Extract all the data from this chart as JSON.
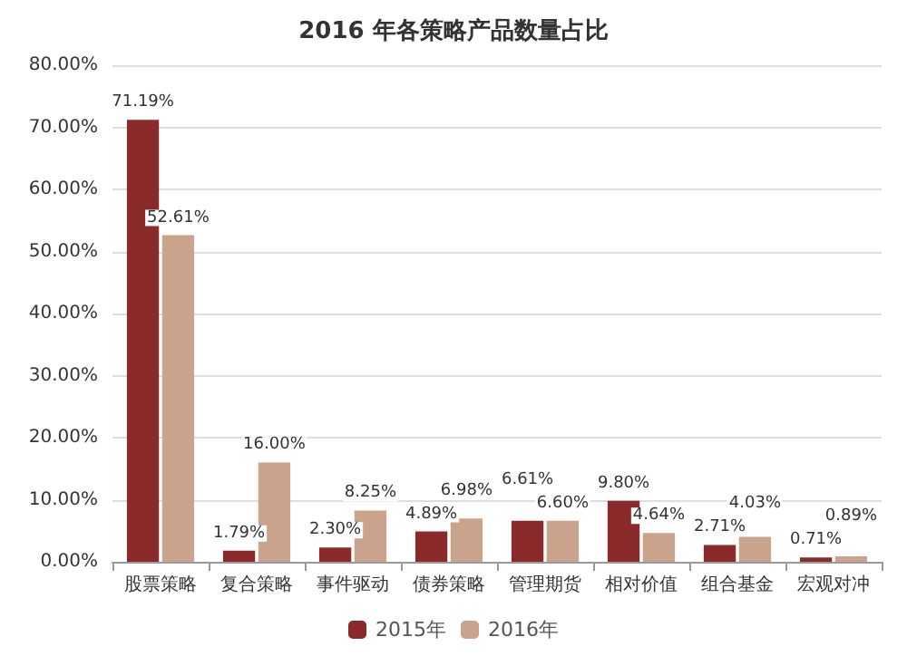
{
  "chart_data": {
    "type": "bar",
    "title": "2016 年各策略产品数量占比",
    "categories": [
      "股票策略",
      "复合策略",
      "事件驱动",
      "债券策略",
      "管理期货",
      "相对价值",
      "组合基金",
      "宏观对冲"
    ],
    "series": [
      {
        "name": "2015年",
        "color": "#8b2a2a",
        "values": [
          71.19,
          1.79,
          2.3,
          4.89,
          6.61,
          9.8,
          2.71,
          0.71
        ],
        "value_labels": [
          "71.19%",
          "1.79%",
          "2.30%",
          "4.89%",
          "6.61%",
          "9.80%",
          "2.71%",
          "0.71%"
        ]
      },
      {
        "name": "2016年",
        "color": "#c9a38c",
        "values": [
          52.61,
          16.0,
          8.25,
          6.98,
          6.6,
          4.64,
          4.03,
          0.89
        ],
        "value_labels": [
          "52.61%",
          "16.00%",
          "8.25%",
          "6.98%",
          "6.60%",
          "4.64%",
          "4.03%",
          "0.89%"
        ]
      }
    ],
    "ylim": [
      0,
      80
    ],
    "yticks": [
      {
        "value": 0,
        "label": "0.00%"
      },
      {
        "value": 10,
        "label": "10.00%"
      },
      {
        "value": 20,
        "label": "20.00%"
      },
      {
        "value": 30,
        "label": "30.00%"
      },
      {
        "value": 40,
        "label": "40.00%"
      },
      {
        "value": 50,
        "label": "50.00%"
      },
      {
        "value": 60,
        "label": "60.00%"
      },
      {
        "value": 70,
        "label": "70.00%"
      },
      {
        "value": 80,
        "label": "80.00%"
      }
    ],
    "grid": "y",
    "legend": "bottom"
  }
}
